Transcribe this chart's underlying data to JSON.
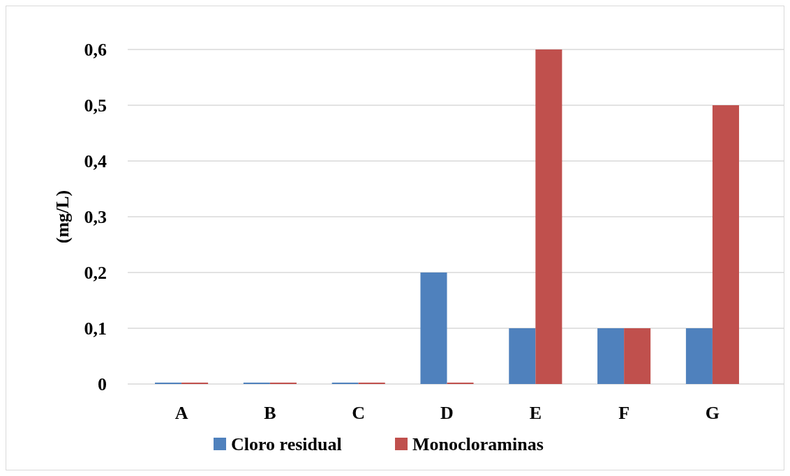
{
  "chart_data": {
    "type": "bar",
    "ylabel": "(mg/L)",
    "categories": [
      "A",
      "B",
      "C",
      "D",
      "E",
      "F",
      "G"
    ],
    "series": [
      {
        "name": "Cloro residual",
        "color": "#4f81bd",
        "values": [
          0,
          0,
          0,
          0.2,
          0.1,
          0.1,
          0.1
        ]
      },
      {
        "name": "Monocloraminas",
        "color": "#c0504d",
        "values": [
          0,
          0,
          0,
          0,
          0.6,
          0.1,
          0.5
        ]
      }
    ],
    "ylim": [
      0,
      0.6
    ],
    "yticks": [
      0,
      {
        "value": 0.1,
        "label": "0,1"
      },
      {
        "value": 0.2,
        "label": "0,2"
      },
      {
        "value": 0.3,
        "label": "0,3"
      },
      {
        "value": 0.4,
        "label": "0,4"
      },
      {
        "value": 0.5,
        "label": "0,5"
      },
      {
        "value": 0.6,
        "label": "0,6"
      }
    ],
    "grid": "y",
    "legend": "bottom"
  }
}
